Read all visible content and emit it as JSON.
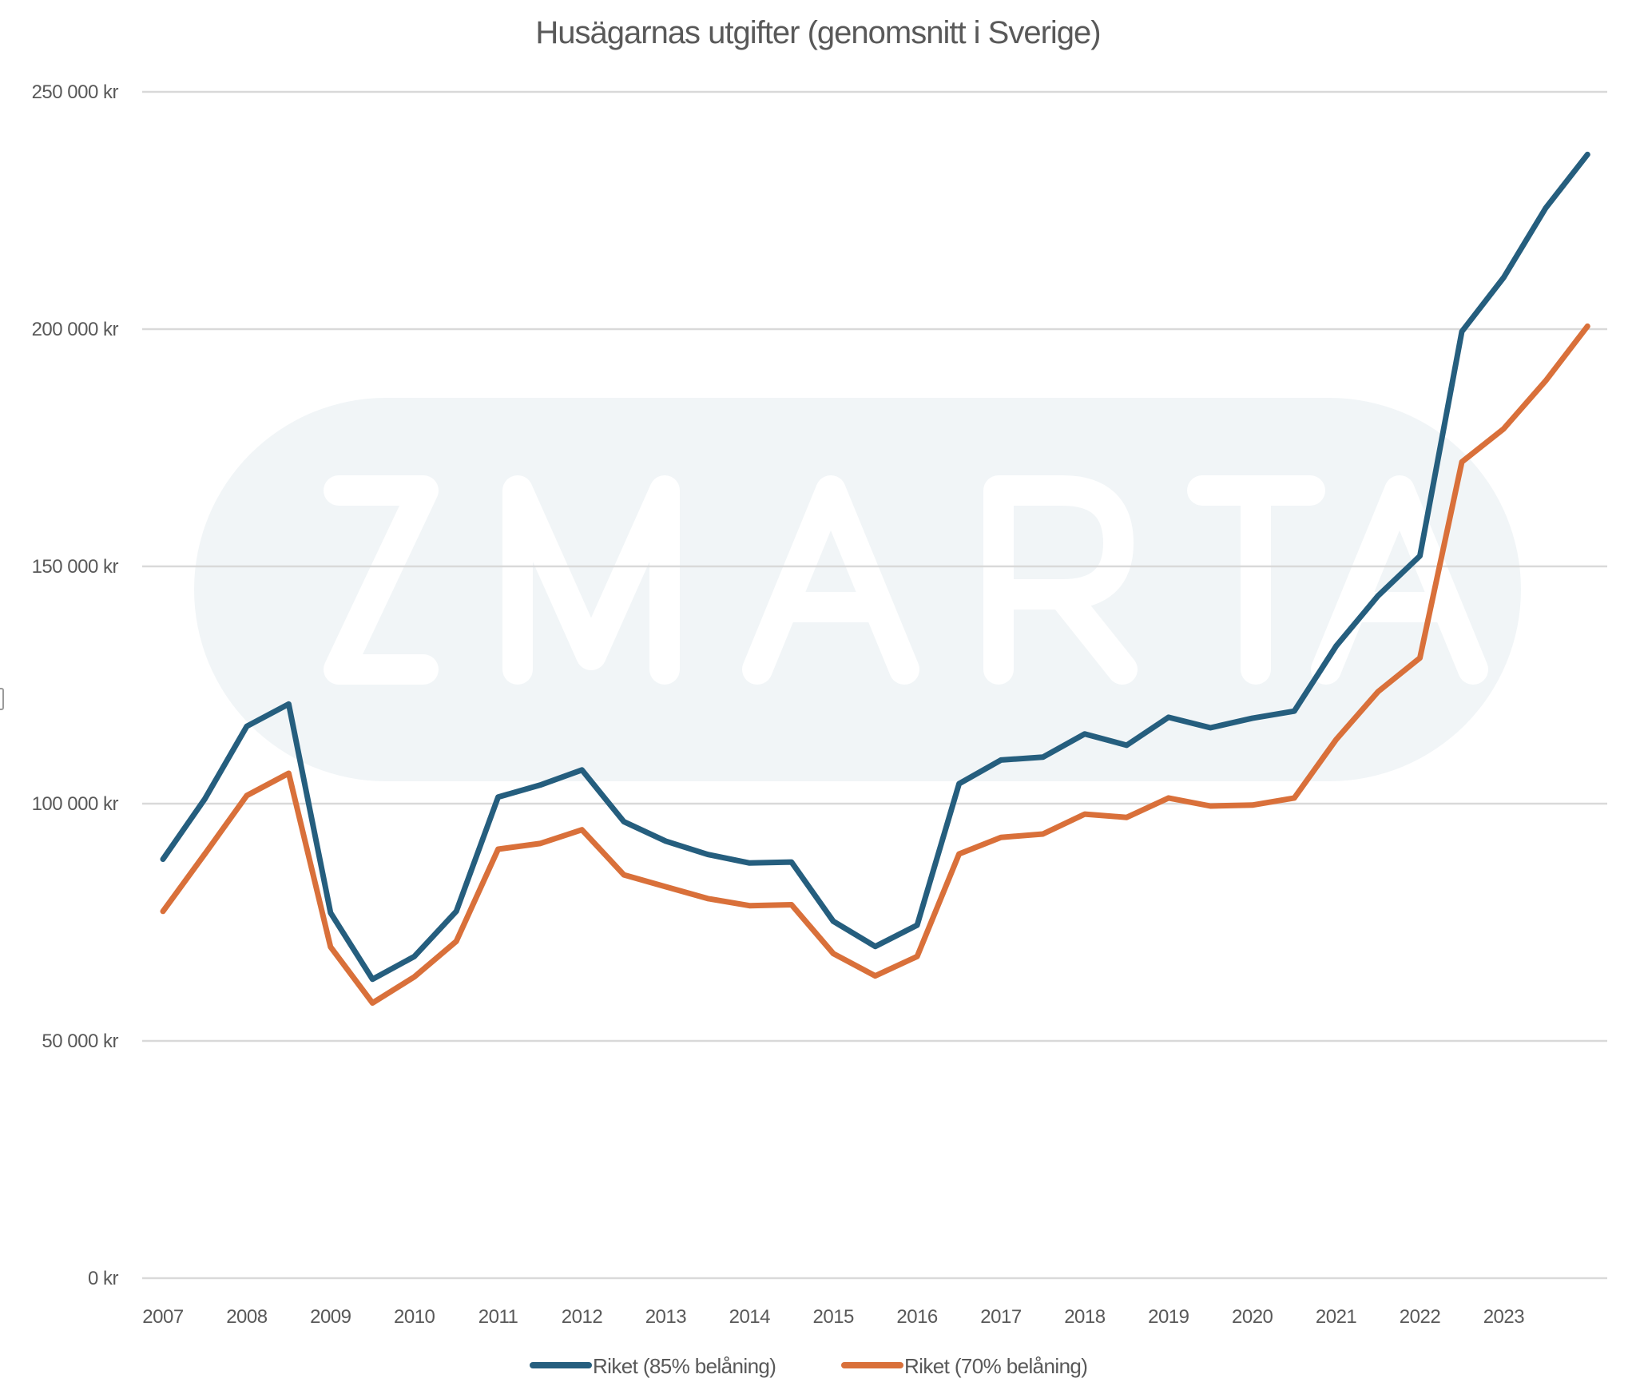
{
  "chart_data": {
    "type": "line",
    "title": "Husägarnas utgifter (genomsnitt i Sverige)",
    "xlabel": "",
    "ylabel": "",
    "x_unit": "year (half-year steps)",
    "x": [
      2007.0,
      2007.5,
      2008.0,
      2008.5,
      2009.0,
      2009.5,
      2010.0,
      2010.5,
      2011.0,
      2011.5,
      2012.0,
      2012.5,
      2013.0,
      2013.5,
      2014.0,
      2014.5,
      2015.0,
      2015.5,
      2016.0,
      2016.5,
      2017.0,
      2017.5,
      2018.0,
      2018.5,
      2019.0,
      2019.5,
      2020.0,
      2020.5,
      2021.0,
      2021.5,
      2022.0,
      2022.5,
      2023.0,
      2023.5,
      2024.0
    ],
    "series": [
      {
        "name": "Riket (85% belåning)",
        "color": "#255e7e",
        "values": [
          88300,
          101000,
          116300,
          121000,
          77000,
          63000,
          67800,
          77300,
          101400,
          103900,
          107100,
          96200,
          92100,
          89300,
          87500,
          87700,
          75200,
          69900,
          74400,
          104200,
          109200,
          109800,
          114700,
          112300,
          118200,
          116000,
          118000,
          119500,
          133200,
          143800,
          152200,
          199500,
          210900,
          225500,
          236800
        ]
      },
      {
        "name": "Riket (70% belåning)",
        "color": "#d9703a",
        "values": [
          77300,
          89400,
          101700,
          106400,
          69800,
          58000,
          63500,
          71000,
          90400,
          91600,
          94500,
          85000,
          82500,
          80000,
          78500,
          78700,
          68400,
          63700,
          67800,
          89400,
          92900,
          93600,
          97800,
          97100,
          101200,
          99500,
          99700,
          101200,
          113500,
          123600,
          130700,
          172000,
          179000,
          189100,
          200600
        ]
      }
    ],
    "x_tick_labels": [
      "2007",
      "2008",
      "2009",
      "2010",
      "2011",
      "2012",
      "2013",
      "2014",
      "2015",
      "2016",
      "2017",
      "2018",
      "2019",
      "2020",
      "2021",
      "2022",
      "2023"
    ],
    "x_tick_values": [
      2007,
      2008,
      2009,
      2010,
      2011,
      2012,
      2013,
      2014,
      2015,
      2016,
      2017,
      2018,
      2019,
      2020,
      2021,
      2022,
      2023
    ],
    "y_tick_values": [
      0,
      50000,
      100000,
      150000,
      200000,
      250000
    ],
    "y_tick_labels": [
      "0 kr",
      "50 000 kr",
      "100 000 kr",
      "150 000 kr",
      "200 000 kr",
      "250 000 kr"
    ],
    "xlim": [
      2007,
      2024
    ],
    "ylim": [
      0,
      250000
    ],
    "grid": "horizontal",
    "legend_position": "bottom-center",
    "watermark": "ZMARTA"
  }
}
